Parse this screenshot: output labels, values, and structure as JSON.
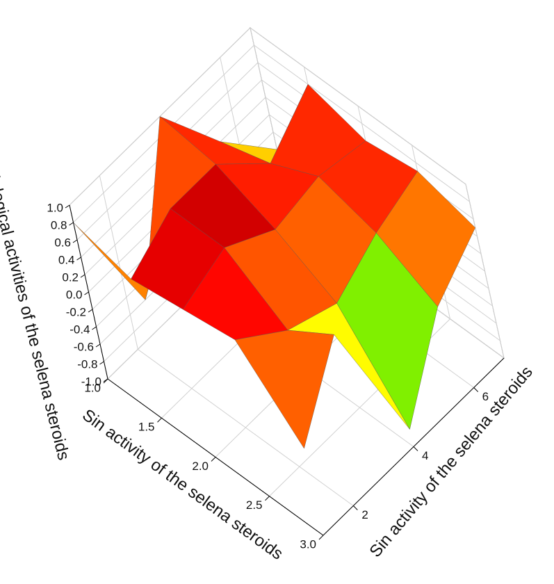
{
  "chart_data": {
    "type": "surface",
    "xlabel": "Sin activity of the selena steroids",
    "ylabel": "Sin activity of the selena steroids",
    "zlabel": "Biological activities of the selena steroids",
    "x": [
      1.0,
      1.5,
      2.0,
      2.5,
      3.0
    ],
    "y": [
      1.0,
      2.5,
      4.0,
      5.5,
      7.0
    ],
    "z": [
      [
        0.8,
        -0.6,
        1.0,
        0.2,
        -0.4
      ],
      [
        0.6,
        0.9,
        0.9,
        0.4,
        0.8
      ],
      [
        0.7,
        0.9,
        0.6,
        0.7,
        0.6
      ],
      [
        0.8,
        0.4,
        0.2,
        0.5,
        0.7
      ],
      [
        0.0,
        0.8,
        -0.8,
        0.1,
        0.5
      ]
    ],
    "xlim": [
      1.0,
      3.0
    ],
    "ylim": [
      1.0,
      7.0
    ],
    "zlim": [
      -1.0,
      1.0
    ],
    "xticks": [
      {
        "value": 1.0,
        "label": "1.0"
      },
      1.5,
      {
        "value": 2.0,
        "label": "2.0"
      },
      2.5,
      {
        "value": 3.0,
        "label": "3.0"
      }
    ],
    "yticks": [
      2,
      4,
      6
    ],
    "zticks": [
      {
        "value": -1.0,
        "label": "-1.0"
      },
      -0.8,
      -0.6,
      -0.4,
      -0.2,
      {
        "value": 0.0,
        "label": "0.0"
      },
      0.2,
      0.4,
      0.6,
      0.8,
      {
        "value": 1.0,
        "label": "1.0"
      }
    ],
    "colormap": [
      "#6a00c8",
      "#0018ff",
      "#00c8ff",
      "#00e000",
      "#ffff00",
      "#ff8000",
      "#ff0000",
      "#8b0000"
    ]
  }
}
